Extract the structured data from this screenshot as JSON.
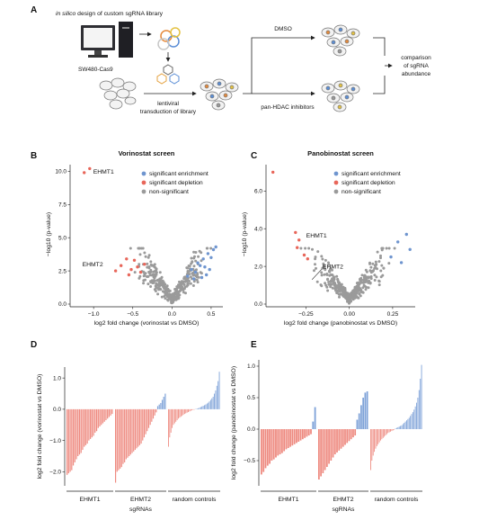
{
  "figure": {
    "panels": [
      "A",
      "B",
      "C",
      "D",
      "E"
    ],
    "schematic": {
      "design_prefix": "in silico",
      "design_rest": " design of custom sgRNA library",
      "cell_line": "SW480-Cas9",
      "transduction_line1": "lentiviral",
      "transduction_line2": "transduction of library",
      "dmso": "DMSO",
      "inhibitors": "pan-HDAC inhibitors",
      "result_line1": "comparison",
      "result_line2": "of sgRNA",
      "result_line3": "abundance"
    },
    "legend": [
      "significant enrichment",
      "significant depletion",
      "non-significant"
    ],
    "colors": {
      "enrichment": "#6f95cf",
      "depletion": "#e8665a",
      "nonsig": "#9a9a9a",
      "bar_red": "#ee8a80",
      "bar_blue": "#7ea2d8"
    }
  },
  "chart_data": [
    {
      "type": "scatter",
      "title": "Vorinostat screen",
      "xlabel": "log2 fold change (vorinostat vs DMSO)",
      "ylabel": "−log10 (p-value)",
      "xlim": [
        -1.3,
        0.65
      ],
      "ylim": [
        0,
        10.5
      ],
      "xticks": [
        "−1.0",
        "−0.5",
        "0.0",
        "0.5"
      ],
      "yticks": [
        "0.0",
        "2.5",
        "5.0",
        "7.5",
        "10.0"
      ],
      "legend_position": "top-right",
      "annotations": [
        {
          "text": "EHMT1",
          "x": -1.12,
          "y": 9.9
        },
        {
          "text": "EHMT2",
          "x": -0.72,
          "y": 2.5
        }
      ],
      "series": [
        {
          "name": "significant enrichment",
          "points": [
            [
              0.2,
              2.1
            ],
            [
              0.25,
              2.6
            ],
            [
              0.3,
              2.4
            ],
            [
              0.33,
              3.1
            ],
            [
              0.36,
              2.9
            ],
            [
              0.4,
              3.4
            ],
            [
              0.42,
              2.8
            ],
            [
              0.46,
              3.8
            ],
            [
              0.5,
              3.5
            ],
            [
              0.53,
              4.1
            ],
            [
              0.56,
              4.3
            ],
            [
              0.44,
              2.2
            ],
            [
              0.38,
              2.0
            ],
            [
              0.28,
              1.9
            ],
            [
              0.48,
              2.6
            ]
          ]
        },
        {
          "name": "significant depletion",
          "points": [
            [
              -1.12,
              9.9
            ],
            [
              -1.05,
              10.2
            ],
            [
              -0.72,
              2.5
            ],
            [
              -0.65,
              2.9
            ],
            [
              -0.58,
              3.4
            ],
            [
              -0.52,
              2.6
            ],
            [
              -0.48,
              3.3
            ],
            [
              -0.44,
              2.8
            ],
            [
              -0.4,
              2.4
            ],
            [
              -0.35,
              3.0
            ],
            [
              -0.55,
              2.2
            ]
          ]
        },
        {
          "name": "non-significant",
          "points": []
        }
      ]
    },
    {
      "type": "scatter",
      "title": "Panobinostat screen",
      "xlabel": "log2 fold change (panobinostat vs DMSO)",
      "ylabel": "−log10 (p-value)",
      "xlim": [
        -0.48,
        0.38
      ],
      "ylim": [
        0,
        7.4
      ],
      "xticks": [
        "−0.25",
        "0.00",
        "0.25"
      ],
      "yticks": [
        "0.0",
        "2.0",
        "4.0",
        "6.0"
      ],
      "legend_position": "top-right",
      "annotations": [
        {
          "text": "EHMT1",
          "x": -0.29,
          "y": 3.4
        },
        {
          "text": "EHMT2",
          "x": -0.18,
          "y": 1.8
        }
      ],
      "series": [
        {
          "name": "significant enrichment",
          "points": [
            [
              0.28,
              3.3
            ],
            [
              0.33,
              3.7
            ],
            [
              0.35,
              2.9
            ],
            [
              0.3,
              2.2
            ],
            [
              0.24,
              2.5
            ]
          ]
        },
        {
          "name": "significant depletion",
          "points": [
            [
              -0.44,
              7.0
            ],
            [
              -0.31,
              3.8
            ],
            [
              -0.29,
              3.4
            ],
            [
              -0.3,
              3.0
            ],
            [
              -0.26,
              2.6
            ],
            [
              -0.24,
              2.4
            ]
          ]
        },
        {
          "name": "non-significant",
          "points": []
        }
      ]
    },
    {
      "type": "bar",
      "ylabel": "log2 fold change (vorinostat vs DMSO)",
      "xlabel": "sgRNAs",
      "groups": [
        "EHMT1",
        "EHMT2",
        "random controls"
      ],
      "ylim": [
        -2.45,
        1.35
      ],
      "yticks": [
        "−2.0",
        "−1.0",
        "0.0",
        "1.0"
      ],
      "series": [
        {
          "group": "EHMT1",
          "values": [
            -2.1,
            -2.05,
            -2.0,
            -1.95,
            -1.8,
            -1.7,
            -1.6,
            -1.5,
            -1.45,
            -1.4,
            -1.3,
            -1.2,
            -1.15,
            -1.1,
            -1.0,
            -0.95,
            -0.9,
            -0.85,
            -0.75,
            -0.7,
            -0.6,
            -0.55,
            -0.5,
            -0.45,
            -0.4,
            -0.35,
            -0.3,
            -0.25,
            -0.2,
            -0.15
          ]
        },
        {
          "group": "EHMT2",
          "values": [
            -2.35,
            -2.0,
            -1.95,
            -1.9,
            -1.85,
            -1.75,
            -1.7,
            -1.6,
            -1.55,
            -1.5,
            -1.45,
            -1.4,
            -1.35,
            -1.3,
            -1.25,
            -1.2,
            -1.15,
            -1.1,
            -1.0,
            -0.9,
            -0.8,
            -0.7,
            -0.6,
            -0.5,
            -0.4,
            -0.3,
            -0.2,
            -0.1,
            0.1,
            0.15,
            0.2,
            0.3,
            0.4,
            0.5
          ]
        },
        {
          "group": "random controls",
          "values": [
            -1.2,
            -0.9,
            -0.75,
            -0.6,
            -0.5,
            -0.45,
            -0.4,
            -0.35,
            -0.3,
            -0.27,
            -0.24,
            -0.21,
            -0.18,
            -0.15,
            -0.13,
            -0.11,
            -0.09,
            -0.07,
            -0.05,
            -0.03,
            -0.02,
            -0.01,
            0.01,
            0.02,
            0.03,
            0.05,
            0.07,
            0.09,
            0.11,
            0.13,
            0.15,
            0.18,
            0.21,
            0.25,
            0.3,
            0.35,
            0.4,
            0.5,
            0.6,
            0.75,
            0.9,
            1.2
          ]
        }
      ]
    },
    {
      "type": "bar",
      "ylabel": "log2 fold change (panobinostat vs DMSO)",
      "xlabel": "sgRNAs",
      "groups": [
        "EHMT1",
        "EHMT2",
        "random controls"
      ],
      "ylim": [
        -0.9,
        1.1
      ],
      "yticks": [
        "−0.5",
        "0.0",
        "0.5",
        "1.0"
      ],
      "series": [
        {
          "group": "EHMT1",
          "values": [
            -0.72,
            -0.68,
            -0.62,
            -0.58,
            -0.55,
            -0.5,
            -0.48,
            -0.45,
            -0.42,
            -0.4,
            -0.38,
            -0.35,
            -0.32,
            -0.3,
            -0.28,
            -0.26,
            -0.24,
            -0.22,
            -0.2,
            -0.18,
            -0.16,
            -0.14,
            -0.12,
            -0.1,
            -0.08,
            0.12,
            0.35
          ]
        },
        {
          "group": "EHMT2",
          "values": [
            -0.8,
            -0.75,
            -0.7,
            -0.65,
            -0.6,
            -0.55,
            -0.5,
            -0.45,
            -0.4,
            -0.37,
            -0.34,
            -0.31,
            -0.28,
            -0.25,
            -0.22,
            -0.19,
            -0.16,
            -0.13,
            -0.1,
            0.15,
            0.25,
            0.38,
            0.5,
            0.58,
            0.6
          ]
        },
        {
          "group": "random controls",
          "values": [
            -0.65,
            -0.5,
            -0.42,
            -0.36,
            -0.31,
            -0.27,
            -0.24,
            -0.21,
            -0.18,
            -0.16,
            -0.14,
            -0.12,
            -0.1,
            -0.08,
            -0.06,
            -0.05,
            -0.04,
            -0.03,
            -0.02,
            -0.01,
            0.01,
            0.02,
            0.03,
            0.04,
            0.05,
            0.06,
            0.08,
            0.1,
            0.12,
            0.14,
            0.16,
            0.18,
            0.21,
            0.24,
            0.27,
            0.31,
            0.36,
            0.42,
            0.5,
            0.62,
            0.8,
            1.02
          ]
        }
      ]
    }
  ]
}
